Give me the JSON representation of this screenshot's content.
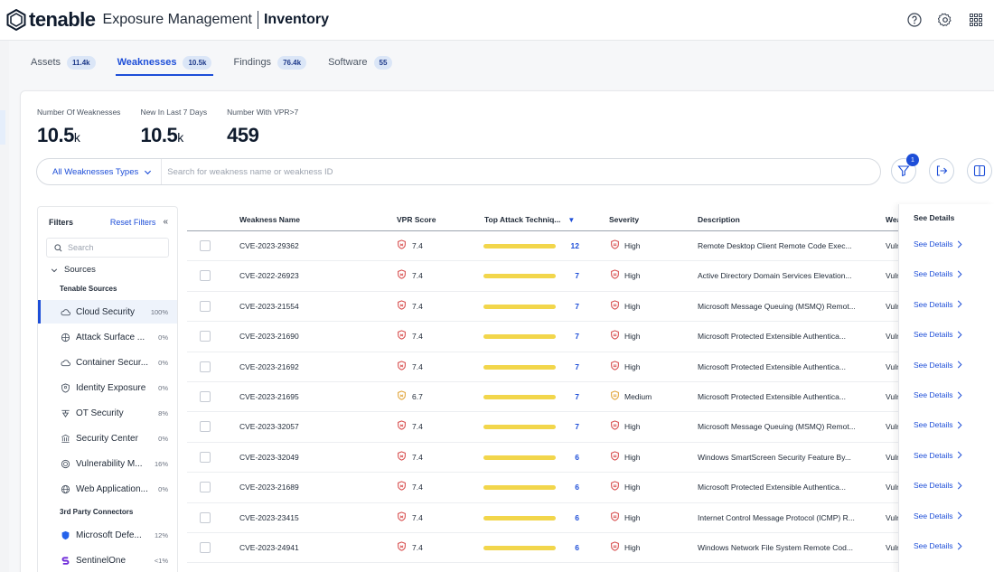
{
  "header": {
    "brand": "tenable",
    "product": "Exposure Management",
    "page": "Inventory"
  },
  "tabs": [
    {
      "label": "Assets",
      "count": "11.4k"
    },
    {
      "label": "Weaknesses",
      "count": "10.5k"
    },
    {
      "label": "Findings",
      "count": "76.4k"
    },
    {
      "label": "Software",
      "count": "55"
    }
  ],
  "metrics": [
    {
      "label": "Number Of Weaknesses",
      "value": "10.5",
      "suffix": "k"
    },
    {
      "label": "New In Last 7 Days",
      "value": "10.5",
      "suffix": "k"
    },
    {
      "label": "Number With VPR>7",
      "value": "459",
      "suffix": ""
    }
  ],
  "search": {
    "type_label": "All Weaknesses Types",
    "placeholder": "Search for weakness name or weakness ID"
  },
  "filter_badge": "1",
  "filters": {
    "title": "Filters",
    "reset": "Reset Filters",
    "search_placeholder": "Search",
    "sources_label": "Sources",
    "tenable_group": "Tenable Sources",
    "tenable_items": [
      {
        "label": "Cloud Security",
        "pct": "100%",
        "icon": "cloud-security-icon"
      },
      {
        "label": "Attack Surface ...",
        "pct": "0%",
        "icon": "attack-surface-icon"
      },
      {
        "label": "Container Secur...",
        "pct": "0%",
        "icon": "container-icon"
      },
      {
        "label": "Identity Exposure",
        "pct": "0%",
        "icon": "identity-icon"
      },
      {
        "label": "OT Security",
        "pct": "8%",
        "icon": "ot-security-icon"
      },
      {
        "label": "Security Center",
        "pct": "0%",
        "icon": "security-center-icon"
      },
      {
        "label": "Vulnerability M...",
        "pct": "16%",
        "icon": "vulnerability-management-icon"
      },
      {
        "label": "Web Application...",
        "pct": "0%",
        "icon": "web-application-icon"
      }
    ],
    "third_party_group": "3rd Party Connectors",
    "third_party_items": [
      {
        "label": "Microsoft Defe...",
        "pct": "12%",
        "icon": "microsoft-defender-icon"
      },
      {
        "label": "SentinelOne",
        "pct": "<1%",
        "icon": "sentinelone-icon"
      }
    ]
  },
  "table": {
    "columns": [
      "Weakness Name",
      "VPR Score",
      "Top Attack Techniq...",
      "Severity",
      "Description",
      "Wea",
      "See Details"
    ],
    "see_details_label": "See Details",
    "severity_colors": {
      "High": "#d64545",
      "Medium": "#e0a030"
    },
    "rows": [
      {
        "name": "CVE-2023-29362",
        "vpr": "7.4",
        "techniques": "12",
        "severity": "High",
        "description": "Remote Desktop Client Remote Code Exec...",
        "type": "Vulr"
      },
      {
        "name": "CVE-2022-26923",
        "vpr": "7.4",
        "techniques": "7",
        "severity": "High",
        "description": "Active Directory Domain Services Elevation...",
        "type": "Vulr"
      },
      {
        "name": "CVE-2023-21554",
        "vpr": "7.4",
        "techniques": "7",
        "severity": "High",
        "description": "Microsoft Message Queuing (MSMQ) Remot...",
        "type": "Vulr"
      },
      {
        "name": "CVE-2023-21690",
        "vpr": "7.4",
        "techniques": "7",
        "severity": "High",
        "description": "Microsoft Protected Extensible Authentica...",
        "type": "Vulr"
      },
      {
        "name": "CVE-2023-21692",
        "vpr": "7.4",
        "techniques": "7",
        "severity": "High",
        "description": "Microsoft Protected Extensible Authentica...",
        "type": "Vulr"
      },
      {
        "name": "CVE-2023-21695",
        "vpr": "6.7",
        "techniques": "7",
        "severity": "Medium",
        "description": "Microsoft Protected Extensible Authentica...",
        "type": "Vulr"
      },
      {
        "name": "CVE-2023-32057",
        "vpr": "7.4",
        "techniques": "7",
        "severity": "High",
        "description": "Microsoft Message Queuing (MSMQ) Remot...",
        "type": "Vulr"
      },
      {
        "name": "CVE-2023-32049",
        "vpr": "7.4",
        "techniques": "6",
        "severity": "High",
        "description": "Windows SmartScreen Security Feature By...",
        "type": "Vulr"
      },
      {
        "name": "CVE-2023-21689",
        "vpr": "7.4",
        "techniques": "6",
        "severity": "High",
        "description": "Microsoft Protected Extensible Authentica...",
        "type": "Vulr"
      },
      {
        "name": "CVE-2023-23415",
        "vpr": "7.4",
        "techniques": "6",
        "severity": "High",
        "description": "Internet Control Message Protocol (ICMP) R...",
        "type": "Vulr"
      },
      {
        "name": "CVE-2023-24941",
        "vpr": "7.4",
        "techniques": "6",
        "severity": "High",
        "description": "Windows Network File System Remote Cod...",
        "type": "Vulr"
      }
    ]
  }
}
